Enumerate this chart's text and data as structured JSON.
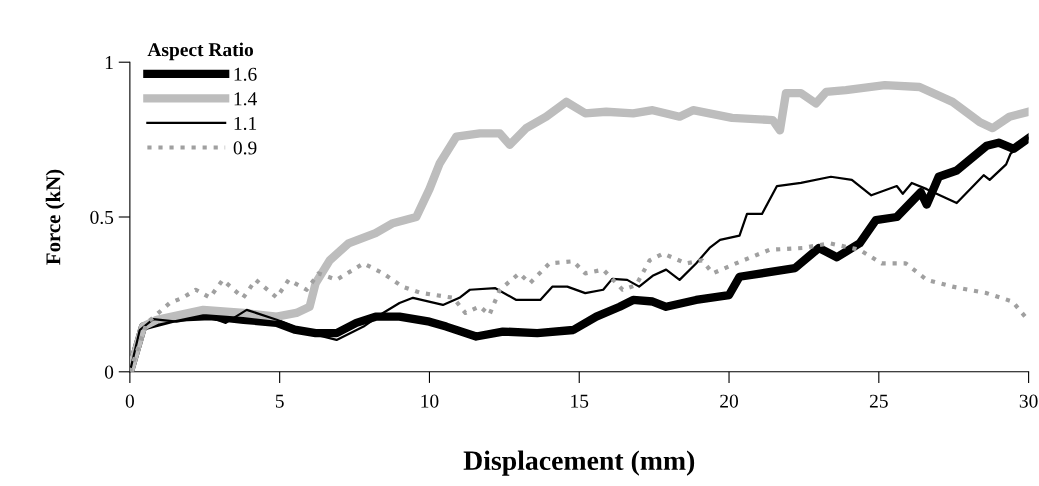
{
  "chart_data": {
    "type": "line",
    "xlabel": "Displacement (mm)",
    "ylabel": "Force (kN)",
    "legend_title": "Aspect Ratio",
    "legend": "top left",
    "xlim": [
      0,
      30
    ],
    "xticks": [
      0,
      5,
      10,
      15,
      20,
      25,
      30
    ],
    "ylim": [
      0,
      1
    ],
    "yticks": [
      0,
      0.5,
      1
    ],
    "grid": false,
    "marker": "none",
    "series": [
      {
        "name": "1.6",
        "color": "#000000",
        "line_style": "solid",
        "x": [
          0,
          0.44,
          1.56,
          2.67,
          3.8,
          4.9,
          5.5,
          6.2,
          6.9,
          7.56,
          8.2,
          9.0,
          10.0,
          10.56,
          11.56,
          12.45,
          13.6,
          14.8,
          15.57,
          16.35,
          16.8,
          17.45,
          17.9,
          18.9,
          20.0,
          20.35,
          22.2,
          23.0,
          23.6,
          24.36,
          24.9,
          25.6,
          26.4,
          26.6,
          27.0,
          27.6,
          28.6,
          29.0,
          29.5,
          30.0
        ],
        "values": [
          0,
          0.146,
          0.175,
          0.18,
          0.168,
          0.158,
          0.136,
          0.125,
          0.125,
          0.158,
          0.178,
          0.178,
          0.162,
          0.146,
          0.114,
          0.13,
          0.125,
          0.135,
          0.178,
          0.21,
          0.232,
          0.227,
          0.21,
          0.232,
          0.248,
          0.307,
          0.335,
          0.4,
          0.37,
          0.415,
          0.49,
          0.5,
          0.58,
          0.54,
          0.63,
          0.65,
          0.73,
          0.74,
          0.72,
          0.755
        ]
      },
      {
        "name": "1.4",
        "color": "#bdbdbd",
        "line_style": "solid",
        "x": [
          0,
          0.44,
          0.9,
          2.45,
          3.8,
          4.9,
          5.56,
          6.0,
          6.2,
          6.67,
          7.3,
          8.2,
          8.78,
          9.56,
          10.0,
          10.34,
          10.9,
          11.68,
          12.35,
          12.68,
          13.23,
          13.9,
          14.57,
          15.2,
          15.9,
          16.8,
          17.45,
          18.35,
          18.8,
          20.1,
          21.46,
          21.7,
          21.9,
          22.4,
          22.9,
          23.24,
          23.9,
          25.2,
          26.36,
          27.46,
          28.36,
          28.8,
          29.36,
          30.0
        ],
        "values": [
          0,
          0.146,
          0.168,
          0.2,
          0.19,
          0.178,
          0.19,
          0.21,
          0.286,
          0.36,
          0.415,
          0.448,
          0.48,
          0.5,
          0.59,
          0.673,
          0.76,
          0.77,
          0.77,
          0.733,
          0.787,
          0.824,
          0.872,
          0.835,
          0.84,
          0.835,
          0.845,
          0.824,
          0.845,
          0.82,
          0.813,
          0.78,
          0.9,
          0.9,
          0.867,
          0.904,
          0.91,
          0.926,
          0.92,
          0.872,
          0.807,
          0.787,
          0.824,
          0.84
        ]
      },
      {
        "name": "1.1",
        "color": "#000000",
        "line_style": "solid",
        "x": [
          0,
          0.33,
          0.78,
          1.56,
          2.56,
          3.2,
          3.9,
          4.9,
          6.0,
          6.9,
          7.8,
          8.45,
          9.0,
          9.45,
          10.45,
          11.0,
          11.35,
          12.2,
          12.9,
          13.7,
          14.1,
          14.6,
          15.2,
          15.8,
          16.1,
          16.6,
          17.0,
          17.45,
          17.9,
          18.35,
          18.9,
          19.35,
          19.7,
          20.35,
          20.6,
          21.1,
          21.6,
          22.4,
          23.4,
          24.1,
          24.75,
          25.6,
          25.8,
          26.1,
          26.6,
          27.6,
          28.5,
          28.7,
          29.25,
          29.4,
          30.0
        ],
        "values": [
          0,
          0.135,
          0.17,
          0.162,
          0.18,
          0.158,
          0.2,
          0.168,
          0.125,
          0.103,
          0.146,
          0.19,
          0.222,
          0.239,
          0.216,
          0.239,
          0.265,
          0.27,
          0.232,
          0.232,
          0.275,
          0.275,
          0.254,
          0.265,
          0.3,
          0.297,
          0.275,
          0.31,
          0.33,
          0.297,
          0.35,
          0.4,
          0.426,
          0.44,
          0.51,
          0.51,
          0.6,
          0.61,
          0.63,
          0.62,
          0.57,
          0.6,
          0.575,
          0.61,
          0.59,
          0.545,
          0.635,
          0.62,
          0.67,
          0.705,
          0.755
        ]
      },
      {
        "name": "0.9",
        "color": "#a0a0a0",
        "line_style": "dotted",
        "x": [
          0,
          0.56,
          1.33,
          1.78,
          2.2,
          2.67,
          3.1,
          3.78,
          4.2,
          4.9,
          5.3,
          5.9,
          6.3,
          6.9,
          7.8,
          8.45,
          9.1,
          9.7,
          10.8,
          11.2,
          11.68,
          12.0,
          12.35,
          13.0,
          13.35,
          14.0,
          14.8,
          15.2,
          15.8,
          16.45,
          16.9,
          17.35,
          17.8,
          18.57,
          19.1,
          19.46,
          20.35,
          21.35,
          22.46,
          23.36,
          24.36,
          25.1,
          25.9,
          26.6,
          27.46,
          28.6,
          29.46,
          30.0
        ],
        "values": [
          0,
          0.157,
          0.222,
          0.24,
          0.265,
          0.24,
          0.297,
          0.239,
          0.297,
          0.24,
          0.297,
          0.265,
          0.318,
          0.297,
          0.35,
          0.318,
          0.275,
          0.255,
          0.239,
          0.19,
          0.211,
          0.184,
          0.265,
          0.318,
          0.286,
          0.35,
          0.357,
          0.318,
          0.33,
          0.265,
          0.28,
          0.36,
          0.382,
          0.35,
          0.36,
          0.318,
          0.355,
          0.394,
          0.4,
          0.415,
          0.394,
          0.35,
          0.35,
          0.297,
          0.275,
          0.254,
          0.227,
          0.165
        ]
      }
    ]
  }
}
